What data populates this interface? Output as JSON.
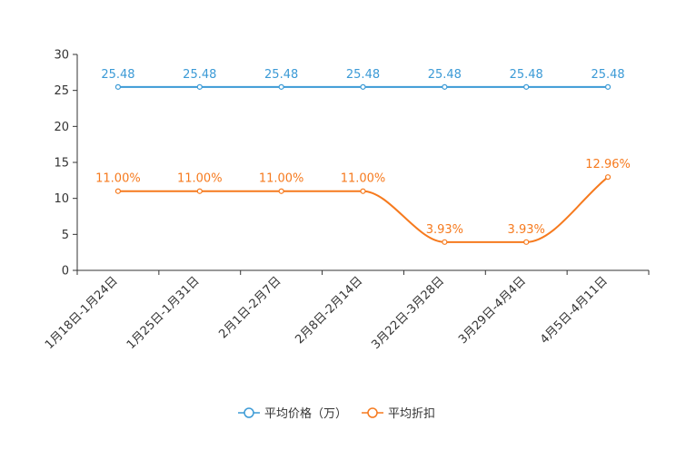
{
  "chart_data": {
    "type": "line",
    "title": "",
    "xlabel": "",
    "ylabel": "",
    "ylim": [
      0,
      30
    ],
    "yticks": [
      0,
      5,
      10,
      15,
      20,
      25,
      30
    ],
    "categories": [
      "1月18日-1月24日",
      "1月25日-1月31日",
      "2月1日-2月7日",
      "2月8日-2月14日",
      "3月22日-3月28日",
      "3月29日-4月4日",
      "4月5日-4月11日"
    ],
    "series": [
      {
        "name": "平均价格（万）",
        "color": "#3b9ad6",
        "values": [
          25.48,
          25.48,
          25.48,
          25.48,
          25.48,
          25.48,
          25.48
        ],
        "labels": [
          "25.48",
          "25.48",
          "25.48",
          "25.48",
          "25.48",
          "25.48",
          "25.48"
        ]
      },
      {
        "name": "平均折扣",
        "color": "#f67a1e",
        "values": [
          11.0,
          11.0,
          11.0,
          11.0,
          3.93,
          3.93,
          12.96
        ],
        "labels": [
          "11.00%",
          "11.00%",
          "11.00%",
          "11.00%",
          "3.93%",
          "3.93%",
          "12.96%"
        ]
      }
    ],
    "legend_position": "bottom-center"
  }
}
